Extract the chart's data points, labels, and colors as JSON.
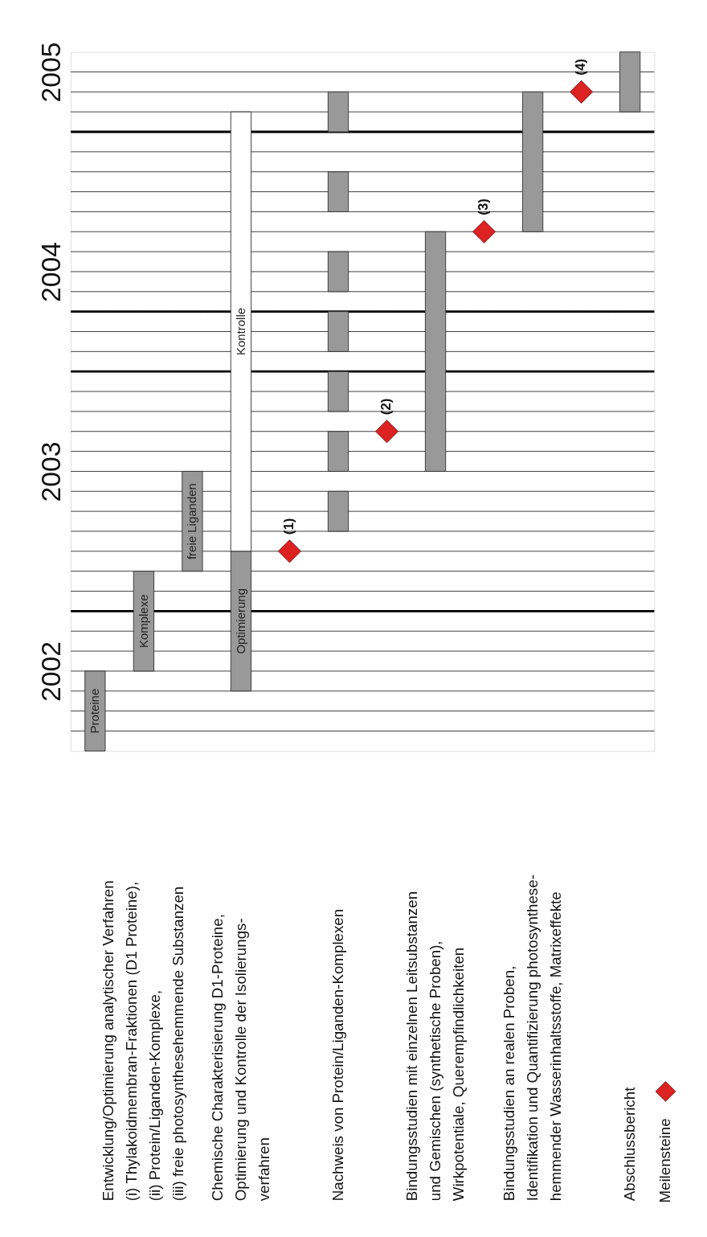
{
  "chart_data": {
    "type": "bar",
    "categories": [
      null,
      "Entwicklung/Optimierung analytischer Verfahren\n(i) Thylakoidmembran-Fraktionen (D1 Proteine),\n(ii) Protein/Liganden-Komplexe,\n(iii) freie photosynthesehemmende Substanzen",
      null,
      "Chemische Charakterisierung D1-Proteine,\nOptimierung und Kontrolle der Isolierungs-\nverfahren",
      null,
      "Nachweis von Protein/Liganden-Komplexen",
      null,
      "Bindungsstudien mit einzelnen Leitsubstanzen\nund Gemischen (synthetische Proben),\nWirkpotentiale, Querempfindlichkeiten",
      null,
      "Bindungsstudien an realen Proben,\nIdentifikation und Quantifizierung photosynthese-\nhemmender Wasserinhaltsstoffe, Matrixeffekte",
      null,
      "Abschlussbericht"
    ],
    "series": [
      {
        "color": "#999999",
        "values": [
          0.4,
          0.5,
          0.5,
          0.7,
          null,
          0.2,
          null,
          1.2,
          null,
          0.7,
          null,
          0.3
        ],
        "base": [
          2001.6,
          2002.0,
          2002.5,
          2001.9,
          null,
          2002.7,
          null,
          2003.0,
          null,
          2004.2,
          null,
          2004.8
        ],
        "value_labels": [
          "Proteine",
          "Komplexe",
          "freie Liganden",
          "Optimierung",
          null,
          null,
          null,
          null,
          null,
          null,
          null,
          null
        ]
      },
      {
        "color": "#ffffff",
        "values": [
          null,
          null,
          null,
          2.2,
          null,
          null,
          null,
          null,
          null,
          null,
          null,
          null
        ],
        "base": [
          null,
          null,
          null,
          2002.6,
          null,
          null,
          null,
          null,
          null,
          null,
          null,
          null
        ],
        "value_labels": [
          null,
          null,
          null,
          "Kontrolle",
          null,
          null,
          null,
          null,
          null,
          null,
          null,
          null
        ]
      },
      {
        "color": "#999999",
        "values": [
          null,
          null,
          null,
          null,
          null,
          0.2,
          null,
          null,
          null,
          null,
          null,
          null
        ],
        "base": [
          null,
          null,
          null,
          null,
          null,
          2003.0,
          null,
          null,
          null,
          null,
          null,
          null
        ]
      },
      {
        "color": "#999999",
        "values": [
          null,
          null,
          null,
          null,
          null,
          0.2,
          null,
          null,
          null,
          null,
          null,
          null
        ],
        "base": [
          null,
          null,
          null,
          null,
          null,
          2003.3,
          null,
          null,
          null,
          null,
          null,
          null
        ]
      },
      {
        "color": "#999999",
        "values": [
          null,
          null,
          null,
          null,
          null,
          0.2,
          null,
          null,
          null,
          null,
          null,
          null
        ],
        "base": [
          null,
          null,
          null,
          null,
          null,
          2003.6,
          null,
          null,
          null,
          null,
          null,
          null
        ]
      },
      {
        "color": "#999999",
        "values": [
          null,
          null,
          null,
          null,
          null,
          0.2,
          null,
          null,
          null,
          null,
          null,
          null
        ],
        "base": [
          null,
          null,
          null,
          null,
          null,
          2003.9,
          null,
          null,
          null,
          null,
          null,
          null
        ]
      },
      {
        "color": "#999999",
        "values": [
          null,
          null,
          null,
          null,
          null,
          0.2,
          null,
          null,
          null,
          null,
          null,
          null
        ],
        "base": [
          null,
          null,
          null,
          null,
          null,
          2004.3,
          null,
          null,
          null,
          null,
          null,
          null
        ]
      },
      {
        "color": "#999999",
        "values": [
          null,
          null,
          null,
          null,
          null,
          0.2,
          null,
          null,
          null,
          null,
          null,
          null
        ],
        "base": [
          null,
          null,
          null,
          null,
          null,
          2004.7,
          null,
          null,
          null,
          null,
          null,
          null
        ]
      },
      {
        "type": "scatter",
        "name": "Meilensteine",
        "color": "#dd2222",
        "marker": "diamond",
        "values": [
          null,
          null,
          null,
          null,
          2002.6,
          null,
          2003.2,
          null,
          2004.2,
          null,
          2004.9,
          null
        ]
      }
    ],
    "annotations": [
      "(1)",
      "(2)",
      "(3)",
      "(4)"
    ],
    "ylim": [
      2001.6,
      2005.1
    ],
    "yticks": [
      {
        "value": 2001.7,
        "label": null
      },
      {
        "value": 2001.8,
        "label": null
      },
      {
        "value": 2001.9,
        "label": null
      },
      2002,
      {
        "value": 2002.1,
        "label": null
      },
      {
        "value": 2002.2,
        "label": null
      },
      {
        "value": 2002.4,
        "label": null
      },
      {
        "value": 2002.5,
        "label": null
      },
      {
        "value": 2002.6,
        "label": null
      },
      {
        "value": 2002.7,
        "label": null
      },
      {
        "value": 2002.8,
        "label": null
      },
      {
        "value": 2002.9,
        "label": null
      },
      2003,
      {
        "value": 2003.1,
        "label": null
      },
      {
        "value": 2003.2,
        "label": null
      },
      {
        "value": 2003.3,
        "label": null
      },
      {
        "value": 2003.4,
        "label": null
      },
      {
        "value": 2003.6,
        "label": null
      },
      {
        "value": 2003.7,
        "label": null
      },
      {
        "value": 2003.9,
        "label": null
      },
      2004,
      {
        "value": 2004.1,
        "label": null
      },
      {
        "value": 2004.2,
        "label": null
      },
      {
        "value": 2004.3,
        "label": null
      },
      {
        "value": 2004.4,
        "label": null
      },
      {
        "value": 2004.5,
        "label": null
      },
      {
        "value": 2004.6,
        "label": null
      },
      {
        "value": 2004.8,
        "label": null
      },
      {
        "value": 2004.9,
        "label": null
      },
      2005
    ],
    "grid": "y",
    "ref_lines": [
      {
        "axis": "y",
        "value": 2002.3,
        "color": "#000000"
      },
      {
        "axis": "y",
        "value": 2003.5,
        "color": "#000000"
      },
      {
        "axis": "y",
        "value": 2004.7,
        "color": "#000000"
      },
      {
        "axis": "y",
        "value": 2003.8,
        "color": "#000000"
      }
    ],
    "legend": "bottom right"
  }
}
